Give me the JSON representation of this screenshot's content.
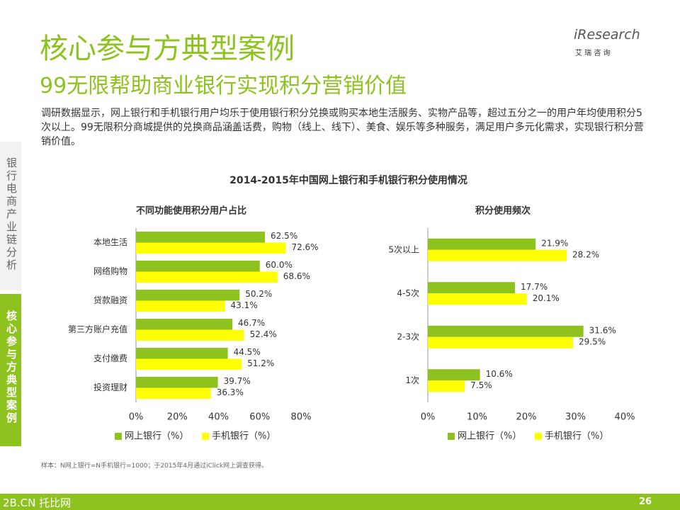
{
  "header": {
    "title": "核心参与方典型案例",
    "subtitle": "99无限帮助商业银行实现积分营销价值",
    "logo": "iResearch",
    "logo_sub": "艾 瑞 咨 询"
  },
  "body": "调研数据显示，网上银行和手机银行用户均乐于使用银行积分兑换或购买本地生活服务、实物产品等，超过五分之一的用户年均使用积分5次以上。99无限积分商城提供的兑换商品涵盖话费，购物（线上、线下）、美食、娱乐等多种服务，满足用户多元化需求，实现银行积分营销价值。",
  "sidebar": {
    "section": "银行电商产业链分析",
    "active": "核心参与方典型案例"
  },
  "chart_group_title": "2014-2015年中国网上银行和手机银行积分使用情况",
  "chart_data": [
    {
      "type": "hbar",
      "title": "不同功能使用积分用户占比",
      "categories": [
        "本地生活",
        "网络购物",
        "贷款融资",
        "第三方账户充值",
        "支付缴费",
        "投资理财"
      ],
      "series": [
        {
          "name": "网上银行（%）",
          "color": "#8dc21f",
          "values": [
            62.5,
            60.0,
            50.2,
            46.7,
            44.5,
            39.7
          ],
          "value_labels": [
            "62.5%",
            "60.0%",
            "50.2%",
            "46.7%",
            "44.5%",
            "39.7%"
          ]
        },
        {
          "name": "手机银行（%）",
          "color": "#ffff00",
          "values": [
            72.6,
            68.6,
            43.1,
            52.4,
            51.2,
            36.3
          ],
          "value_labels": [
            "72.6%",
            "68.6%",
            "43.1%",
            "52.4%",
            "51.2%",
            "36.3%"
          ]
        }
      ],
      "xlim": [
        0,
        80
      ],
      "xticks": [
        {
          "value": 0,
          "label": "0%"
        },
        {
          "value": 20,
          "label": "20%"
        },
        {
          "value": 40,
          "label": "40%"
        },
        {
          "value": 60,
          "label": "60%"
        },
        {
          "value": 80,
          "label": "80%"
        }
      ]
    },
    {
      "type": "hbar",
      "title": "积分使用频次",
      "categories": [
        "5次以上",
        "4-5次",
        "2-3次",
        "1次"
      ],
      "series": [
        {
          "name": "网上银行（%）",
          "color": "#8dc21f",
          "values": [
            21.9,
            17.7,
            31.6,
            10.6
          ],
          "value_labels": [
            "21.9%",
            "17.7%",
            "31.6%",
            "10.6%"
          ]
        },
        {
          "name": "手机银行（%）",
          "color": "#ffff00",
          "values": [
            28.2,
            20.1,
            29.5,
            7.5
          ],
          "value_labels": [
            "28.2%",
            "20.1%",
            "29.5%",
            "7.5%"
          ]
        }
      ],
      "xlim": [
        0,
        40
      ],
      "xticks": [
        {
          "value": 0,
          "label": "0%"
        },
        {
          "value": 10,
          "label": "10%"
        },
        {
          "value": 20,
          "label": "20%"
        },
        {
          "value": 30,
          "label": "30%"
        },
        {
          "value": 40,
          "label": "40%"
        }
      ]
    }
  ],
  "footnote": "样本：N网上银行=N手机银行=1000；于2015年4月通过iClick网上调查获得。",
  "footer": {
    "brand": "2B.CN 托比网",
    "page": "26"
  }
}
